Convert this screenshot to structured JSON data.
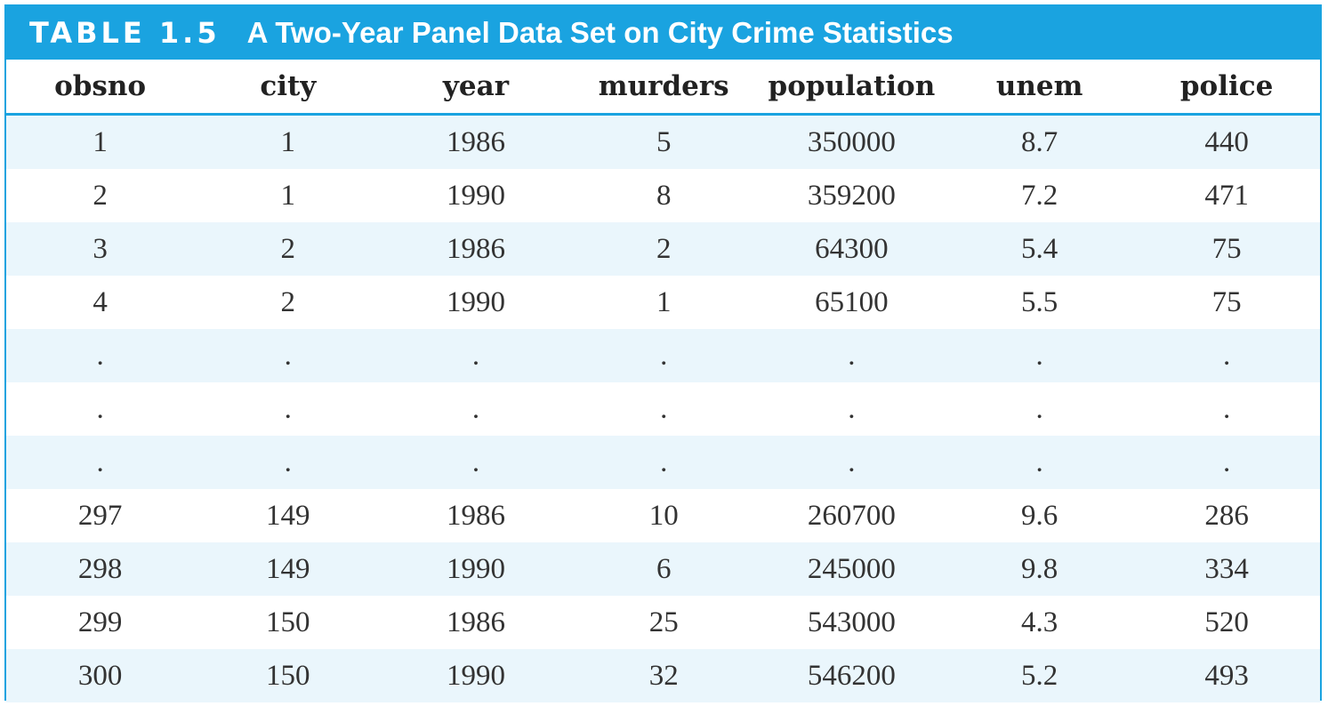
{
  "table": {
    "label": "TABLE 1.5",
    "title": "A Two-Year Panel Data Set on City Crime Statistics",
    "columns": [
      "obsno",
      "city",
      "year",
      "murders",
      "population",
      "unem",
      "police"
    ],
    "rows": [
      [
        "1",
        "1",
        "1986",
        "5",
        "350000",
        "8.7",
        "440"
      ],
      [
        "2",
        "1",
        "1990",
        "8",
        "359200",
        "7.2",
        "471"
      ],
      [
        "3",
        "2",
        "1986",
        "2",
        "64300",
        "5.4",
        "75"
      ],
      [
        "4",
        "2",
        "1990",
        "1",
        "65100",
        "5.5",
        "75"
      ],
      [
        ".",
        ".",
        ".",
        ".",
        ".",
        ".",
        "."
      ],
      [
        ".",
        ".",
        ".",
        ".",
        ".",
        ".",
        "."
      ],
      [
        ".",
        ".",
        ".",
        ".",
        ".",
        ".",
        "."
      ],
      [
        "297",
        "149",
        "1986",
        "10",
        "260700",
        "9.6",
        "286"
      ],
      [
        "298",
        "149",
        "1990",
        "6",
        "245000",
        "9.8",
        "334"
      ],
      [
        "299",
        "150",
        "1986",
        "25",
        "543000",
        "4.3",
        "520"
      ],
      [
        "300",
        "150",
        "1990",
        "32",
        "546200",
        "5.2",
        "493"
      ]
    ]
  },
  "colors": {
    "accent": "#1aa3e0",
    "row_stripe": "#eaf6fc"
  }
}
